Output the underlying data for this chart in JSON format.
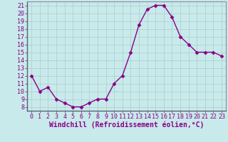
{
  "hours": [
    0,
    1,
    2,
    3,
    4,
    5,
    6,
    7,
    8,
    9,
    10,
    11,
    12,
    13,
    14,
    15,
    16,
    17,
    18,
    19,
    20,
    21,
    22,
    23
  ],
  "values": [
    12,
    10,
    10.5,
    9,
    8.5,
    8,
    8,
    8.5,
    9,
    9,
    11,
    12,
    15,
    18.5,
    20.5,
    21,
    21,
    19.5,
    17,
    16,
    15,
    15,
    15,
    14.5
  ],
  "line_color": "#880088",
  "marker": "D",
  "marker_size": 2.5,
  "bg_color": "#c8eaea",
  "grid_color": "#aacccc",
  "xlabel": "Windchill (Refroidissement éolien,°C)",
  "ylim": [
    7.5,
    21.5
  ],
  "xlim": [
    -0.5,
    23.5
  ],
  "yticks": [
    8,
    9,
    10,
    11,
    12,
    13,
    14,
    15,
    16,
    17,
    18,
    19,
    20,
    21
  ],
  "xticks": [
    0,
    1,
    2,
    3,
    4,
    5,
    6,
    7,
    8,
    9,
    10,
    11,
    12,
    13,
    14,
    15,
    16,
    17,
    18,
    19,
    20,
    21,
    22,
    23
  ],
  "xlabel_fontsize": 7,
  "tick_fontsize": 6,
  "line_width": 1.0,
  "label_color": "#880088",
  "spine_color": "#8888aa"
}
